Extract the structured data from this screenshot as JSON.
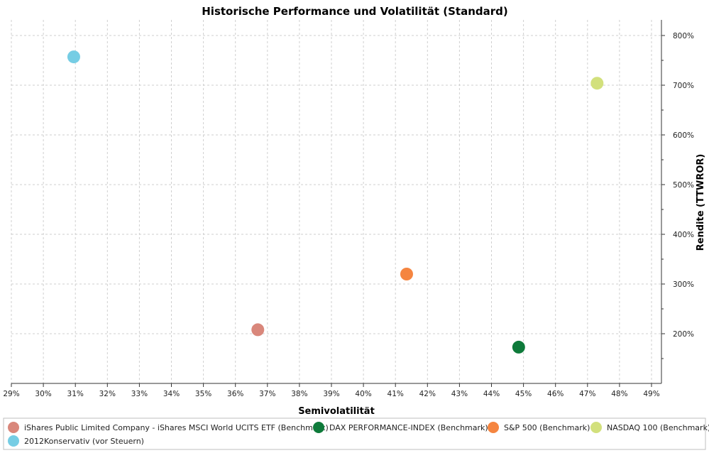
{
  "chart_data": {
    "type": "scatter",
    "title": "Historische Performance und Volatilität (Standard)",
    "xlabel": "Semivolatilität",
    "ylabel": "Rendite (TTWROR)",
    "xlim": [
      29,
      49
    ],
    "ylim": [
      100,
      830
    ],
    "x_ticks": [
      "29%",
      "30%",
      "31%",
      "32%",
      "33%",
      "34%",
      "35%",
      "36%",
      "37%",
      "38%",
      "39%",
      "40%",
      "41%",
      "42%",
      "43%",
      "44%",
      "45%",
      "46%",
      "47%",
      "48%",
      "49%"
    ],
    "x_tick_values": [
      29,
      30,
      31,
      32,
      33,
      34,
      35,
      36,
      37,
      38,
      39,
      40,
      41,
      42,
      43,
      44,
      45,
      46,
      47,
      48,
      49
    ],
    "y_ticks": [
      "200%",
      "300%",
      "400%",
      "500%",
      "600%",
      "700%",
      "800%"
    ],
    "y_tick_values": [
      200,
      300,
      400,
      500,
      600,
      700,
      800
    ],
    "grid": true,
    "legend_position": "bottom",
    "series": [
      {
        "name": "iShares Public Limited Company - iShares MSCI World UCITS ETF (Benchmark)",
        "color": "#d9877b",
        "x": 36.7,
        "y": 208
      },
      {
        "name": "DAX PERFORMANCE-INDEX (Benchmark)",
        "color": "#0e7a3a",
        "x": 44.85,
        "y": 173
      },
      {
        "name": "S&P 500 (Benchmark)",
        "color": "#f58540",
        "x": 41.35,
        "y": 320
      },
      {
        "name": "NASDAQ 100 (Benchmark)",
        "color": "#d2e07c",
        "x": 47.3,
        "y": 704
      },
      {
        "name": "2012Konservativ (vor Steuern)",
        "color": "#76cde4",
        "x": 30.95,
        "y": 757
      }
    ]
  }
}
